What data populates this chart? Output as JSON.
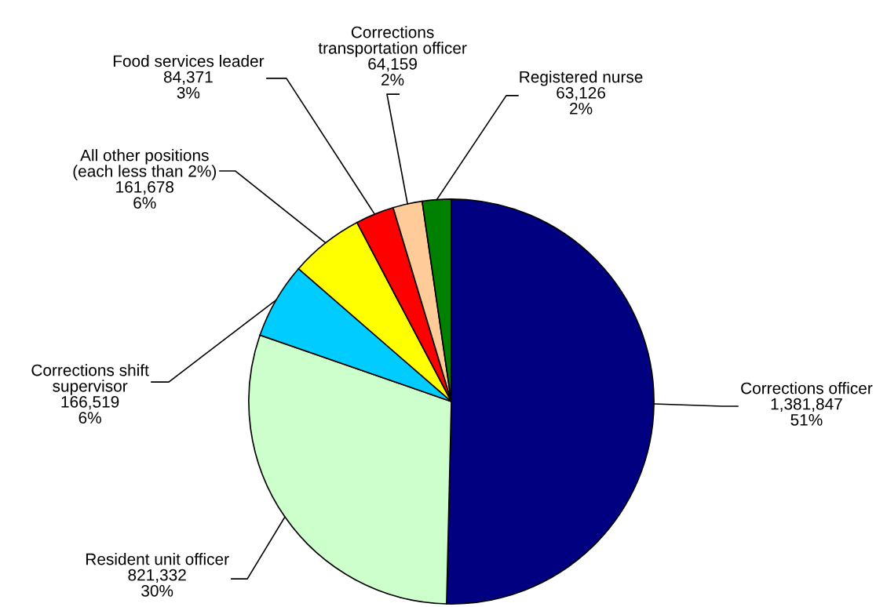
{
  "chart_data": {
    "type": "pie",
    "categories": [
      "Corrections officer",
      "Resident unit officer",
      "Corrections shift\nsupervisor",
      "All other positions\n(each less than 2%)",
      "Food services leader",
      "Corrections\ntransportation officer",
      "Registered nurse"
    ],
    "values": [
      1381847,
      821332,
      166519,
      161678,
      84371,
      64159,
      63126
    ],
    "value_labels": [
      "1,381,847\n51%",
      "821,332\n30%",
      "166,519\n6%",
      "161,678\n6%",
      "84,371\n3%",
      "64,159\n2%",
      "63,126\n2%"
    ],
    "colors": [
      "#000080",
      "#ccffcc",
      "#00ccff",
      "#ffff00",
      "#ff0000",
      "#ffcc99",
      "#008000"
    ],
    "legend": false
  }
}
